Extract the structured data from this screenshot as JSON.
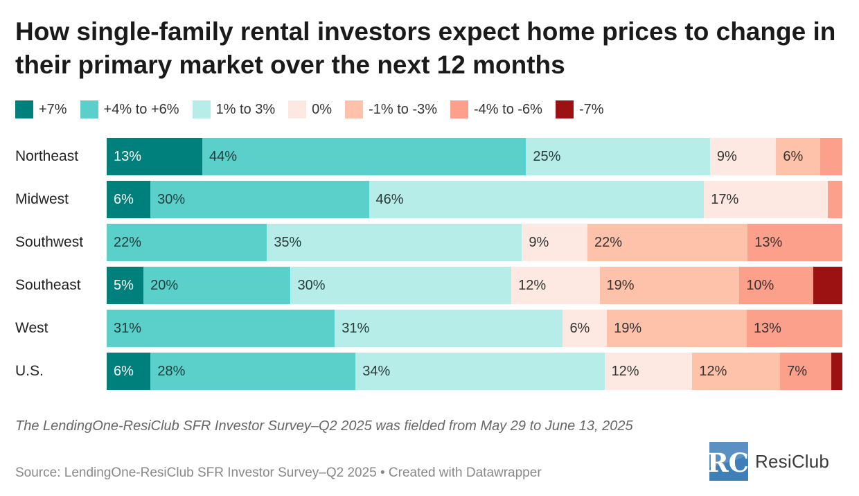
{
  "title": "How single-family rental investors expect home prices to change in their primary market over the next 12 months",
  "chart_data": {
    "type": "bar",
    "orientation": "horizontal",
    "stacked": true,
    "title": "How single-family rental investors expect home prices to change in their primary market over the next 12 months",
    "categories": [
      "Northeast",
      "Midwest",
      "Southwest",
      "Southeast",
      "West",
      "U.S."
    ],
    "series": [
      {
        "name": "+7%",
        "color": "#00807c",
        "label_color": "#ffffff",
        "values": [
          13,
          6,
          0,
          5,
          0,
          6
        ]
      },
      {
        "name": "+4% to +6%",
        "color": "#5bcfca",
        "label_color": "#1f3d3b",
        "values": [
          44,
          30,
          22,
          20,
          31,
          28
        ]
      },
      {
        "name": "1% to 3%",
        "color": "#b6ede9",
        "label_color": "#2a3a39",
        "values": [
          25,
          46,
          35,
          30,
          31,
          34
        ]
      },
      {
        "name": "0%",
        "color": "#fde9e2",
        "label_color": "#333333",
        "values": [
          9,
          17,
          9,
          12,
          6,
          12
        ]
      },
      {
        "name": "-1% to -3%",
        "color": "#fec1aa",
        "label_color": "#333333",
        "values": [
          6,
          0,
          22,
          19,
          19,
          12
        ]
      },
      {
        "name": "-4% to -6%",
        "color": "#fc9f8b",
        "label_color": "#333333",
        "values": [
          3,
          2,
          13,
          10,
          13,
          7
        ]
      },
      {
        "name": "-7%",
        "color": "#9c1111",
        "label_color": "#ffffff",
        "values": [
          0,
          0,
          0,
          4,
          0,
          1.5
        ]
      }
    ],
    "value_labels": [
      [
        "13%",
        "44%",
        "25%",
        "9%",
        "6%",
        "",
        ""
      ],
      [
        "6%",
        "30%",
        "46%",
        "17%",
        "",
        "",
        ""
      ],
      [
        "",
        "22%",
        "35%",
        "9%",
        "22%",
        "13%",
        ""
      ],
      [
        "5%",
        "20%",
        "30%",
        "12%",
        "19%",
        "10%",
        ""
      ],
      [
        "",
        "31%",
        "31%",
        "6%",
        "19%",
        "13%",
        ""
      ],
      [
        "6%",
        "28%",
        "34%",
        "12%",
        "12%",
        "7%",
        ""
      ]
    ],
    "xlim": [
      0,
      100
    ],
    "xlabel": "",
    "ylabel": "",
    "legend_position": "top-left",
    "grid": false
  },
  "note": "The LendingOne-ResiClub SFR Investor Survey–Q2 2025 was fielded from May 29 to June 13, 2025",
  "source": "Source: LendingOne-ResiClub SFR Investor Survey–Q2 2025 • Created with Datawrapper",
  "logo": {
    "mark_text": "RC",
    "brand": "ResiClub",
    "color": "#3f7fb8"
  }
}
